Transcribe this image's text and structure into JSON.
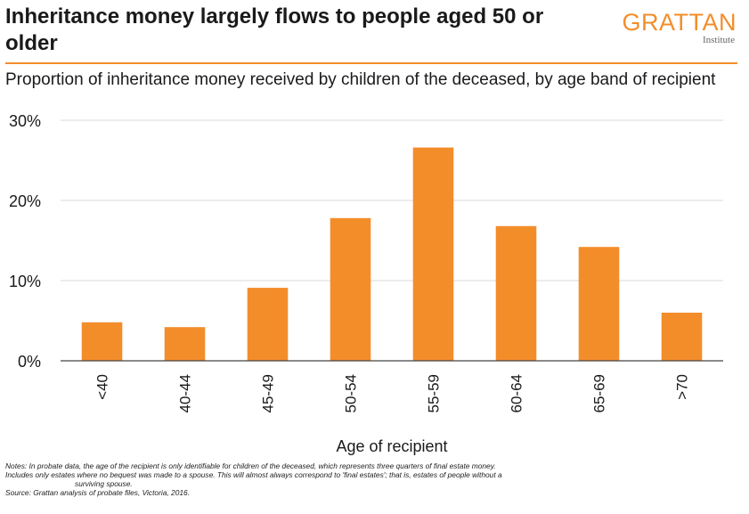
{
  "header": {
    "title": "Inheritance money largely flows to people aged 50 or older",
    "logo_word": "GRATTAN",
    "logo_sub": "Institute",
    "subtitle": "Proportion of inheritance money received by children of the deceased, by age band of recipient"
  },
  "chart_data": {
    "type": "bar",
    "categories": [
      "<40",
      "40-44",
      "45-49",
      "50-54",
      "55-59",
      "60-64",
      "65-69",
      ">70"
    ],
    "values": [
      4.8,
      4.2,
      9.1,
      17.8,
      26.6,
      16.8,
      14.2,
      6.0
    ],
    "xlabel": "Age of recipient",
    "ylabel": "",
    "ylim": [
      0,
      30
    ],
    "yticks": [
      0,
      10,
      20,
      30
    ],
    "ytick_labels": [
      "0%",
      "10%",
      "20%",
      "30%"
    ],
    "grid": true,
    "bar_color": "#f38d2a",
    "grid_color": "#d9d9d9"
  },
  "notes": {
    "line1": "Notes: In probate data, the age of the recipient is only identifiable for children of the deceased, which represents three quarters of final estate money.",
    "line2": "Includes only estates where no bequest was made to a spouse. This will almost always correspond to 'final estates'; that is, estates of people without a",
    "line3": "surviving spouse.",
    "line4": "Source: Grattan analysis of probate files, Victoria, 2016."
  },
  "colors": {
    "accent": "#f38d2a"
  }
}
